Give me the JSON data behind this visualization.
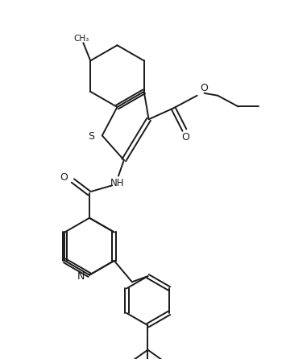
{
  "bg_color": "#ffffff",
  "line_color": "#1a1a1a",
  "line_width": 1.4,
  "figsize": [
    3.5,
    4.52
  ],
  "dpi": 100,
  "xlim": [
    0,
    7
  ],
  "ylim": [
    0,
    9
  ]
}
